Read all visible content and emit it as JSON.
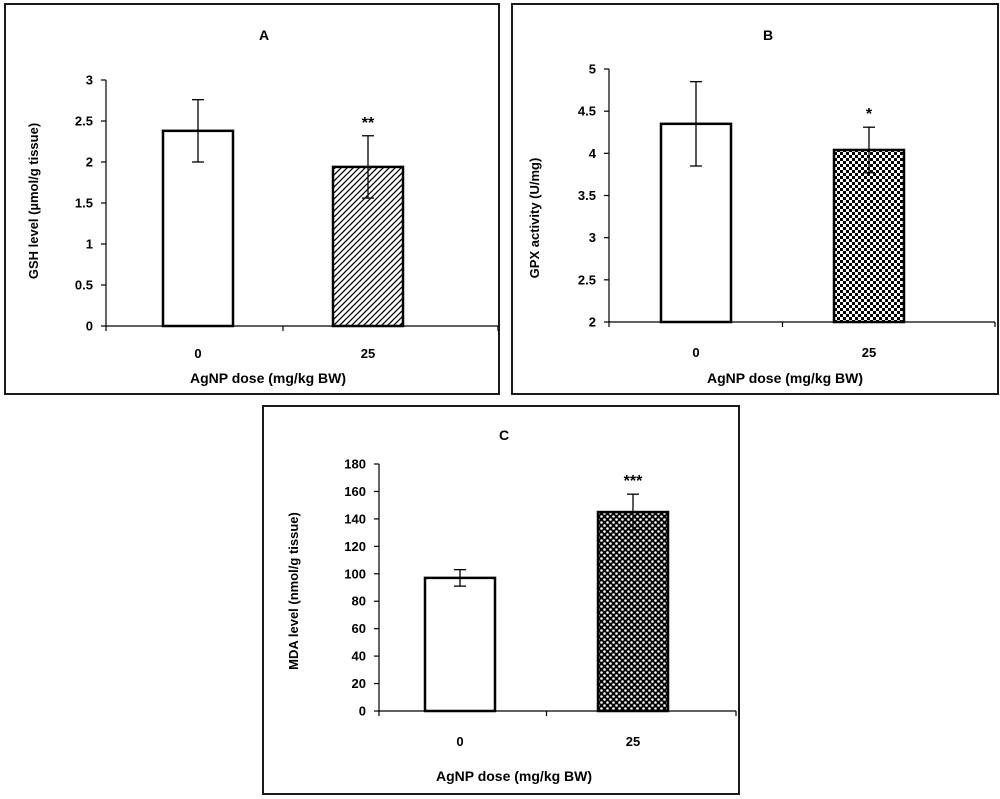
{
  "chart_data": [
    {
      "panel": "A",
      "type": "bar",
      "title": "A",
      "xlabel": "AgNP dose (mg/kg BW)",
      "ylabel": "GSH level (µmol/g tissue)",
      "categories": [
        "0",
        "25"
      ],
      "values": [
        2.38,
        1.94
      ],
      "errors": [
        0.38,
        0.38
      ],
      "annotations": [
        "",
        "**"
      ],
      "fills": [
        "none",
        "diagonal-hatch"
      ],
      "ylim": [
        0,
        3
      ],
      "yticks": [
        0,
        0.5,
        1,
        1.5,
        2,
        2.5,
        3
      ],
      "ytick_labels": [
        "0",
        "0.5",
        "1",
        "1.5",
        "2",
        "2.5",
        "3"
      ],
      "grid": false
    },
    {
      "panel": "B",
      "type": "bar",
      "title": "B",
      "xlabel": "AgNP dose (mg/kg BW)",
      "ylabel": "GPX activity (U/mg)",
      "categories": [
        "0",
        "25"
      ],
      "values": [
        4.35,
        4.04
      ],
      "errors": [
        0.5,
        0.27
      ],
      "annotations": [
        "",
        "*"
      ],
      "fills": [
        "none",
        "checker"
      ],
      "ylim": [
        2,
        5
      ],
      "yticks": [
        2,
        2.5,
        3,
        3.5,
        4,
        4.5,
        5
      ],
      "ytick_labels": [
        "2",
        "2.5",
        "3",
        "3.5",
        "4",
        "4.5",
        "5"
      ],
      "grid": false
    },
    {
      "panel": "C",
      "type": "bar",
      "title": "C",
      "xlabel": "AgNP dose (mg/kg BW)",
      "ylabel": "MDA level (nmol/g tissue)",
      "categories": [
        "0",
        "25"
      ],
      "values": [
        97,
        145
      ],
      "errors": [
        6,
        13
      ],
      "annotations": [
        "",
        "***"
      ],
      "fills": [
        "none",
        "dots"
      ],
      "ylim": [
        0,
        180
      ],
      "yticks": [
        0,
        20,
        40,
        60,
        80,
        100,
        120,
        140,
        160,
        180
      ],
      "ytick_labels": [
        "0",
        "20",
        "40",
        "60",
        "80",
        "100",
        "120",
        "140",
        "160",
        "180"
      ],
      "grid": false
    }
  ]
}
